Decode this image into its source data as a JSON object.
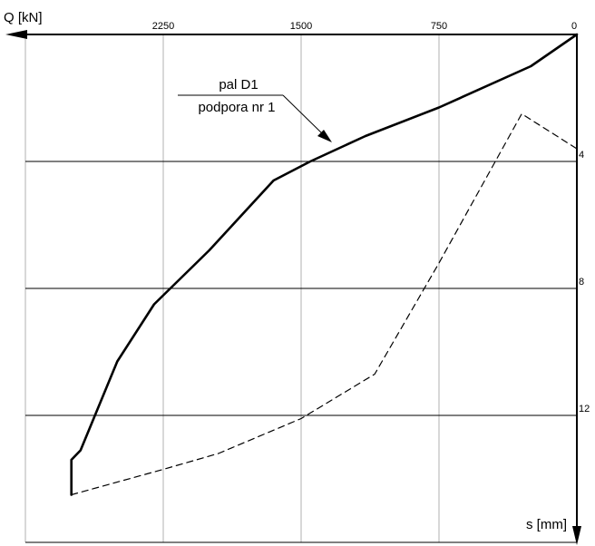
{
  "chart_data": {
    "type": "line",
    "xlabel": "Q [kN]",
    "ylabel": "s [mm]",
    "x_direction": "decreasing to the right (0 at right edge)",
    "y_direction": "increasing downward",
    "xlim": [
      3000,
      0
    ],
    "ylim": [
      0,
      16
    ],
    "x_ticks": [
      2250,
      1500,
      750,
      0
    ],
    "x_tick_labels": [
      "2250",
      "1500",
      "750",
      "0"
    ],
    "y_ticks": [
      4,
      8,
      12
    ],
    "y_tick_labels": [
      "4",
      "8",
      "12"
    ],
    "grid": true,
    "annotation": {
      "line1": "pal D1",
      "line2": "podpora nr 1"
    },
    "series": [
      {
        "style": "solid",
        "color": "#000000",
        "x": [
          0,
          250,
          750,
          1150,
          1450,
          1650,
          2000,
          2300,
          2500,
          2700,
          2750,
          2750
        ],
        "y": [
          0,
          1.0,
          2.3,
          3.2,
          4.0,
          4.6,
          6.8,
          8.5,
          10.3,
          13.1,
          13.4,
          14.5
        ]
      },
      {
        "style": "dashed",
        "color": "#000000",
        "x": [
          2750,
          2250,
          1950,
          1500,
          1100,
          750,
          300,
          0
        ],
        "y": [
          14.5,
          13.7,
          13.2,
          12.1,
          10.7,
          7.2,
          2.5,
          3.6
        ]
      }
    ]
  }
}
